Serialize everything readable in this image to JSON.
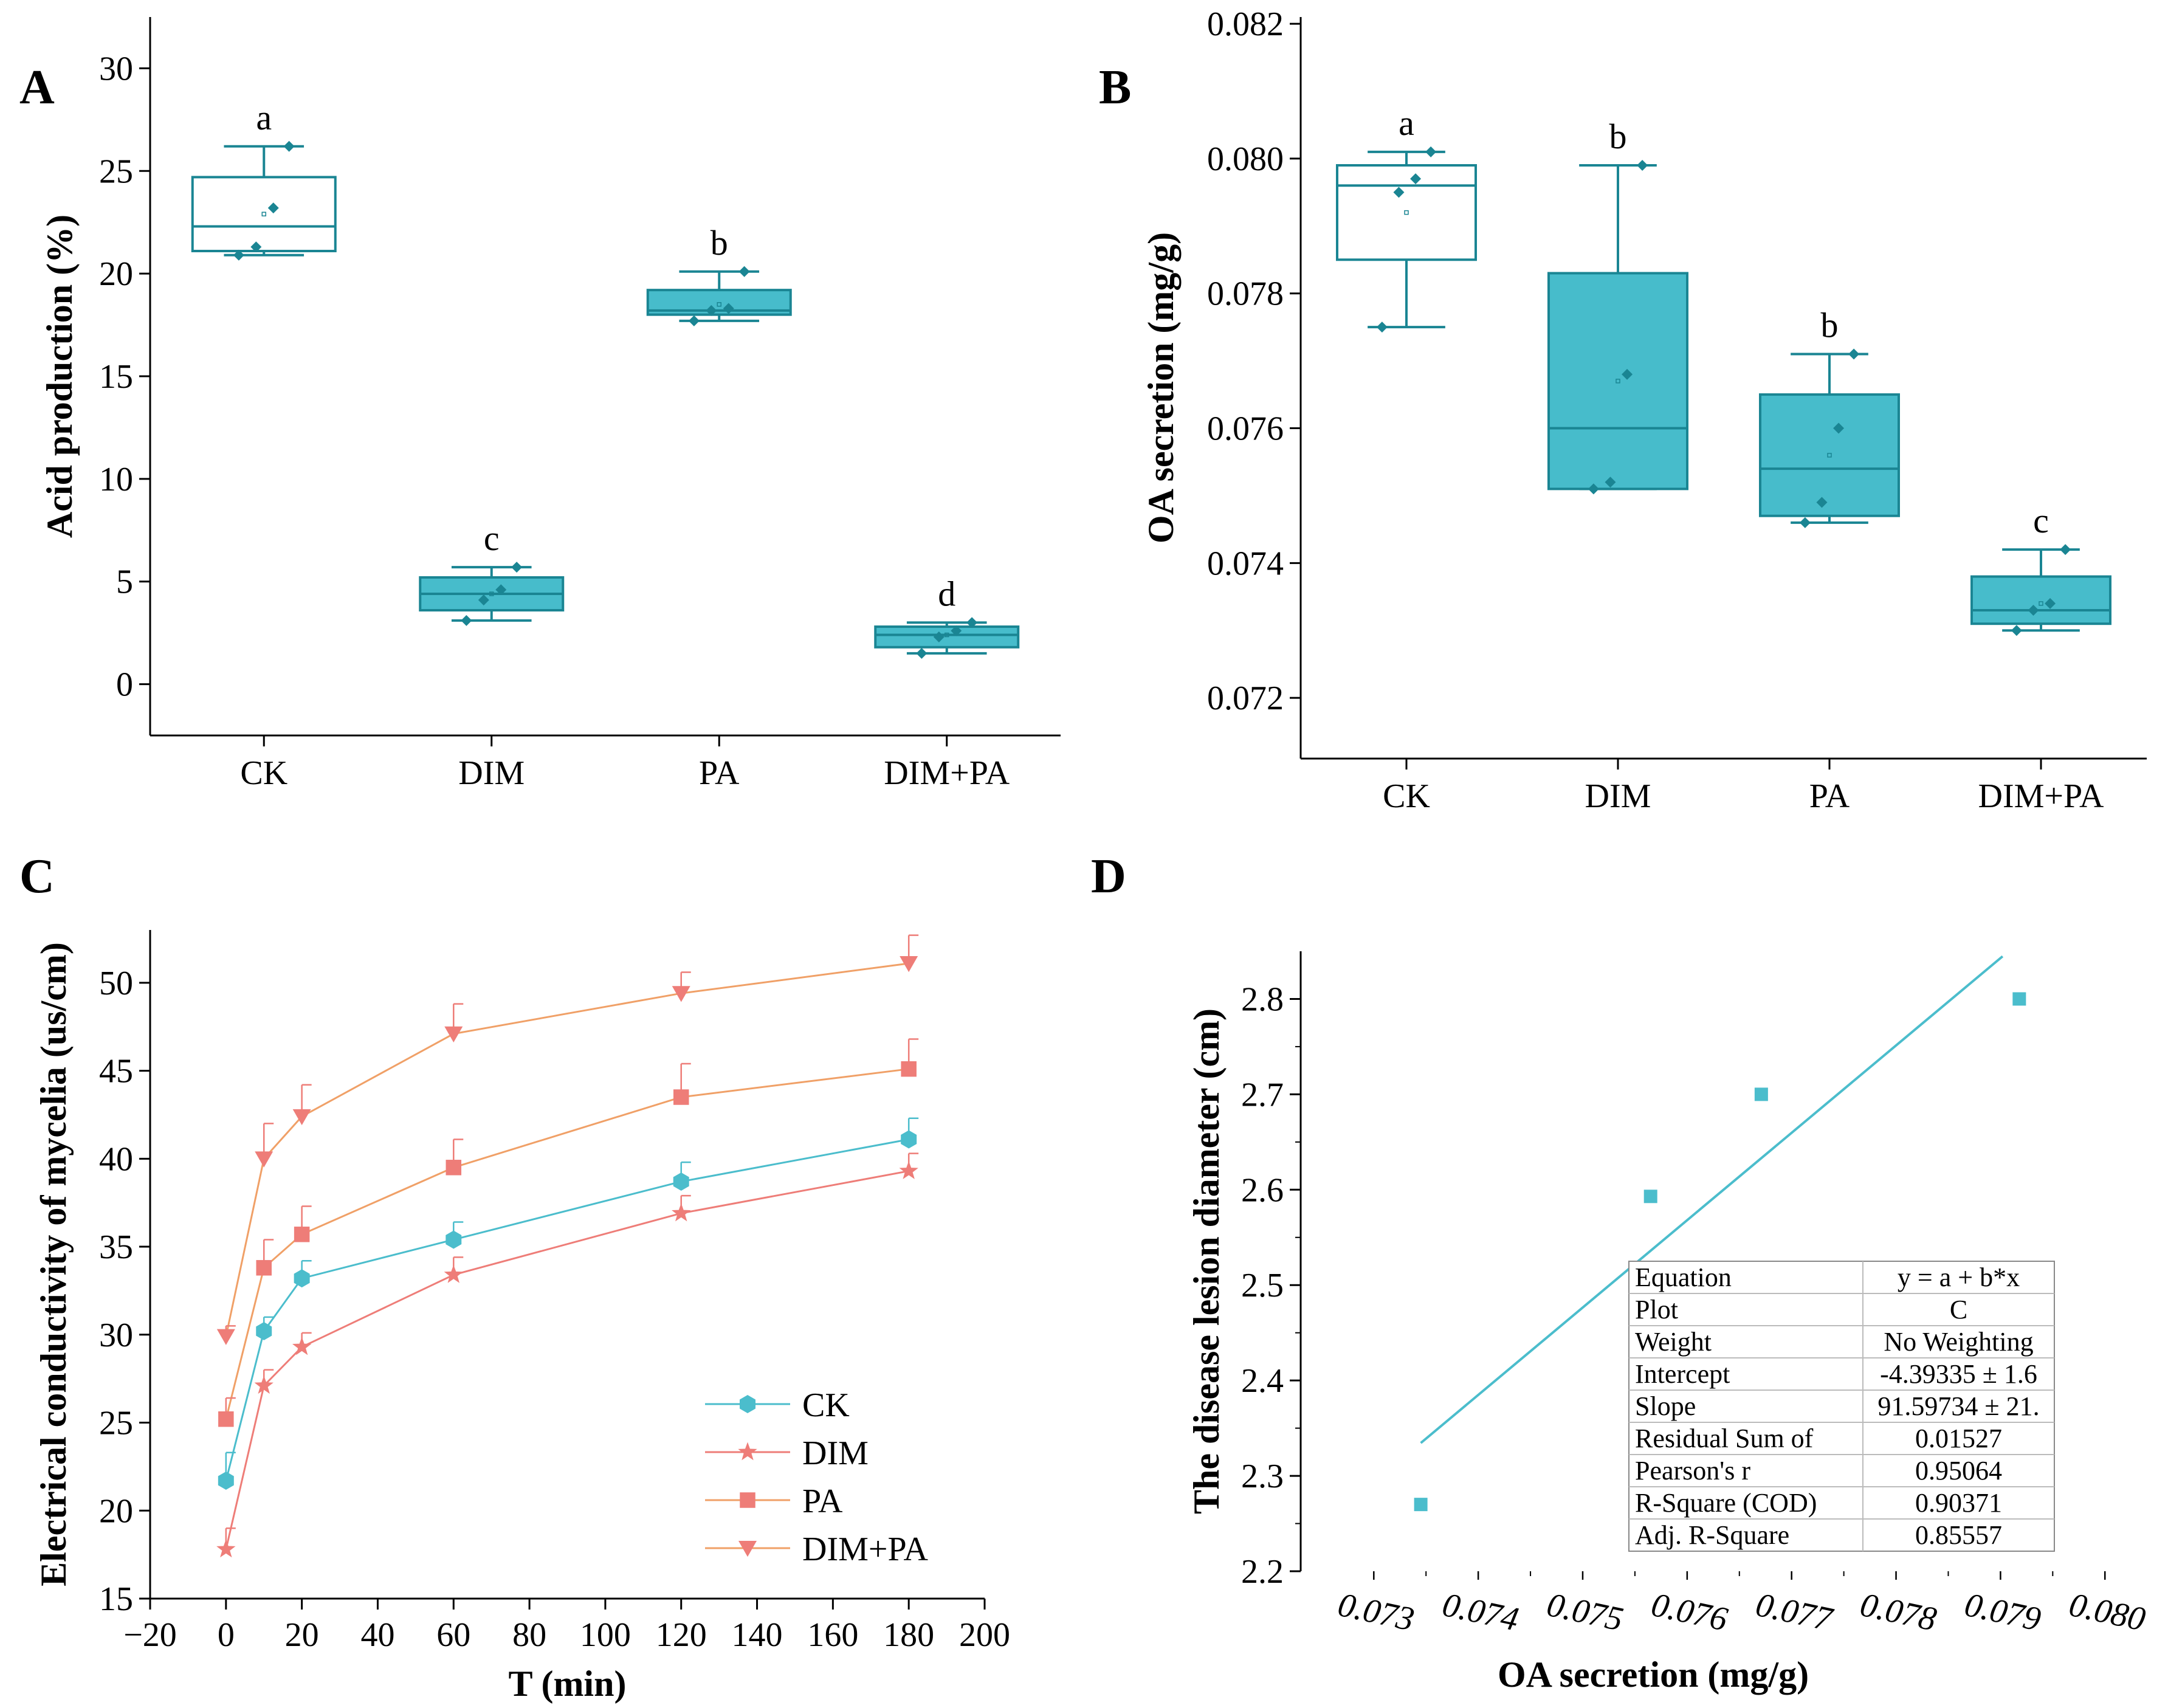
{
  "colors": {
    "teal": "#1a8593",
    "box_fill": "#47bccb",
    "ck_line": "#4bbdcc",
    "dim_line": "#ee7d78",
    "pa_line": "#f0a067",
    "pa_marker": "#ee7d78",
    "dimpa_line": "#f0a067",
    "dimpa_marker": "#ee7d78"
  },
  "chart_data": [
    {
      "panel": "A",
      "type": "box",
      "ylabel": "Acid production (%)",
      "ylim": [
        -2.5,
        32.5
      ],
      "yticks": [
        0,
        5,
        10,
        15,
        20,
        25,
        30
      ],
      "categories": [
        "CK",
        "DIM",
        "PA",
        "DIM+PA"
      ],
      "boxes": [
        {
          "name": "CK",
          "q1": 21.1,
          "median": 22.3,
          "q3": 24.7,
          "min": 20.9,
          "max": 26.2,
          "mean": 22.9,
          "points": [
            20.9,
            21.3,
            23.2,
            26.2
          ],
          "letter": "a",
          "filled": false
        },
        {
          "name": "DIM",
          "q1": 3.6,
          "median": 4.4,
          "q3": 5.2,
          "min": 3.1,
          "max": 5.7,
          "mean": 4.4,
          "points": [
            3.1,
            4.1,
            4.6,
            5.7
          ],
          "letter": "c",
          "filled": true
        },
        {
          "name": "PA",
          "q1": 18.0,
          "median": 18.2,
          "q3": 19.2,
          "min": 17.7,
          "max": 20.1,
          "mean": 18.5,
          "points": [
            17.7,
            18.2,
            18.3,
            20.1
          ],
          "letter": "b",
          "filled": true
        },
        {
          "name": "DIM+PA",
          "q1": 1.8,
          "median": 2.4,
          "q3": 2.8,
          "min": 1.5,
          "max": 3.0,
          "mean": 2.4,
          "points": [
            1.5,
            2.3,
            2.6,
            3.0
          ],
          "letter": "d",
          "filled": true
        }
      ]
    },
    {
      "panel": "B",
      "type": "box",
      "ylabel": "OA secretion (mg/g)",
      "ylim": [
        0.0711,
        0.0821
      ],
      "yticks": [
        "0.072",
        "0.074",
        "0.076",
        "0.078",
        "0.080",
        "0.082"
      ],
      "categories": [
        "CK",
        "DIM",
        "PA",
        "DIM+PA"
      ],
      "boxes": [
        {
          "name": "CK",
          "q1": 0.0785,
          "median": 0.0796,
          "q3": 0.0799,
          "min": 0.0775,
          "max": 0.0801,
          "mean": 0.0792,
          "points": [
            0.0775,
            0.0795,
            0.0797,
            0.0801
          ],
          "letter": "a",
          "filled": false
        },
        {
          "name": "DIM",
          "q1": 0.0751,
          "median": 0.076,
          "q3": 0.0783,
          "min": 0.0751,
          "max": 0.0799,
          "mean": 0.0767,
          "points": [
            0.0751,
            0.0752,
            0.0768,
            0.0799
          ],
          "letter": "b",
          "filled": true
        },
        {
          "name": "PA",
          "q1": 0.0747,
          "median": 0.0754,
          "q3": 0.0765,
          "min": 0.0746,
          "max": 0.0771,
          "mean": 0.0756,
          "points": [
            0.0746,
            0.0749,
            0.076,
            0.0771
          ],
          "letter": "b",
          "filled": true
        },
        {
          "name": "DIM+PA",
          "q1": 0.0731,
          "median": 0.0733,
          "q3": 0.0738,
          "min": 0.073,
          "max": 0.0742,
          "mean": 0.0734,
          "points": [
            0.073,
            0.0733,
            0.0734,
            0.0742
          ],
          "letter": "c",
          "filled": true
        }
      ]
    },
    {
      "panel": "C",
      "type": "line",
      "xlabel": "T (min)",
      "ylabel": "Electrical conductivity of mycelia (us/cm)",
      "xlim": [
        -20,
        200
      ],
      "ylim": [
        15,
        53
      ],
      "xticks": [
        -20,
        0,
        20,
        40,
        60,
        80,
        100,
        120,
        140,
        160,
        180,
        200
      ],
      "xtick_labels": [
        "−20",
        "0",
        "20",
        "40",
        "60",
        "80",
        "100",
        "120",
        "140",
        "160",
        "180",
        "200"
      ],
      "yticks": [
        15,
        20,
        25,
        30,
        35,
        40,
        45,
        50
      ],
      "x": [
        0,
        10,
        20,
        60,
        120,
        180
      ],
      "series": [
        {
          "name": "CK",
          "marker": "circle",
          "values": [
            21.7,
            30.2,
            33.2,
            35.4,
            38.7,
            41.1
          ],
          "errors": [
            1.6,
            0.8,
            1.0,
            1.0,
            1.1,
            1.2
          ]
        },
        {
          "name": "DIM",
          "marker": "star",
          "values": [
            17.8,
            27.1,
            29.3,
            33.4,
            36.9,
            39.3
          ],
          "errors": [
            1.2,
            0.9,
            0.8,
            1.0,
            1.0,
            1.0
          ]
        },
        {
          "name": "PA",
          "marker": "square",
          "values": [
            25.2,
            33.8,
            35.7,
            39.5,
            43.5,
            45.1
          ],
          "errors": [
            1.2,
            1.6,
            1.6,
            1.6,
            1.9,
            1.7
          ]
        },
        {
          "name": "DIM+PA",
          "marker": "triangle-down",
          "values": [
            29.9,
            40.0,
            42.4,
            47.1,
            49.4,
            51.1
          ],
          "errors": [
            0.6,
            2.0,
            1.8,
            1.7,
            1.2,
            1.6
          ]
        }
      ],
      "legend_position": "bottom-right"
    },
    {
      "panel": "D",
      "type": "scatter",
      "xlabel": "OA secretion (mg/g)",
      "ylabel": "The disease lesion diameter (cm)",
      "xlim": [
        0.0723,
        0.0804
      ],
      "ylim": [
        2.2,
        2.85
      ],
      "xticks": [
        "0.073",
        "0.074",
        "0.075",
        "0.076",
        "0.077",
        "0.078",
        "0.079",
        "0.080"
      ],
      "yticks": [
        "2.2",
        "2.3",
        "2.4",
        "2.5",
        "2.6",
        "2.7",
        "2.8"
      ],
      "points": [
        {
          "x": 0.07345,
          "y": 2.27
        },
        {
          "x": 0.07565,
          "y": 2.593
        },
        {
          "x": 0.07671,
          "y": 2.7
        },
        {
          "x": 0.07918,
          "y": 2.8
        }
      ],
      "fit": {
        "intercept": -4.39335,
        "slope": 91.59734,
        "x_from": 0.07345,
        "x_to": 0.07902
      },
      "stats_table": [
        [
          "Equation",
          "y = a + b*x"
        ],
        [
          "Plot",
          "C"
        ],
        [
          "Weight",
          "No Weighting"
        ],
        [
          "Intercept",
          "-4.39335 ± 1.6"
        ],
        [
          "Slope",
          "91.59734 ± 21."
        ],
        [
          "Residual Sum of",
          "0.01527"
        ],
        [
          "Pearson's r",
          "0.95064"
        ],
        [
          "R-Square (COD)",
          "0.90371"
        ],
        [
          "Adj. R-Square",
          "0.85557"
        ]
      ]
    }
  ]
}
